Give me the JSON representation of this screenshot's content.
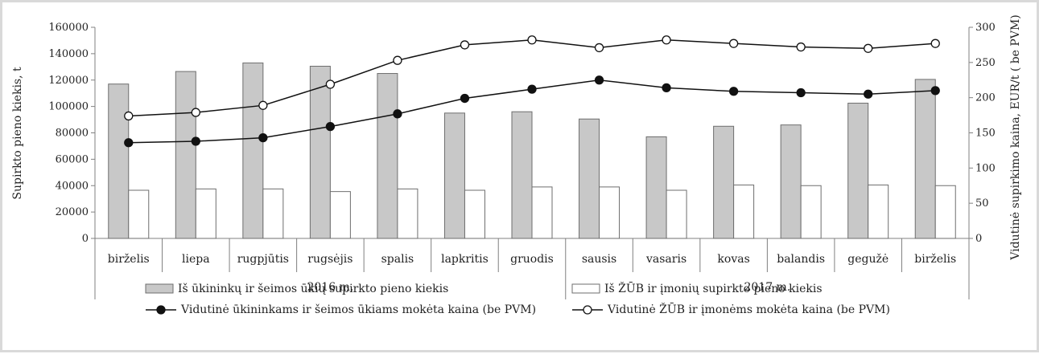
{
  "chart_data": {
    "type": "bar",
    "categories": [
      "birželis",
      "liepa",
      "rugpjūtis",
      "rugsėjis",
      "spalis",
      "lapkritis",
      "gruodis",
      "sausis",
      "vasaris",
      "kovas",
      "balandis",
      "gegužė",
      "birželis"
    ],
    "groups": [
      {
        "label": "2016 m.",
        "start": 0,
        "end": 6
      },
      {
        "label": "2017 m.",
        "start": 7,
        "end": 12
      }
    ],
    "title": "",
    "ylabel": "Supirkto pieno kiekis, t",
    "y2label": "Vidutinė supirkimo kaina, EUR/t ( be PVM)",
    "ylim": [
      0,
      160000
    ],
    "y2lim": [
      0,
      300
    ],
    "yticks": [
      "0",
      "20000",
      "40000",
      "60000",
      "80000",
      "100000",
      "120000",
      "140000",
      "160000"
    ],
    "y2ticks": [
      "0",
      "50",
      "100",
      "150",
      "200",
      "250",
      "300"
    ],
    "grid": false,
    "legend_position": "bottom",
    "series": [
      {
        "name": "Iš ūkininkų ir šeimos ūkių supirkto pieno kiekis",
        "type": "bar",
        "axis": "left",
        "color": "#c8c8c8",
        "values": [
          117000,
          126500,
          133000,
          130500,
          125000,
          95000,
          96000,
          90500,
          77000,
          85000,
          86000,
          102500,
          120500
        ]
      },
      {
        "name": "Iš ŽŪB ir įmonių supirkto pieno kiekis",
        "type": "bar",
        "axis": "left",
        "color": "#ffffff",
        "values": [
          36500,
          37500,
          37500,
          35500,
          37500,
          36500,
          39000,
          39000,
          36500,
          40500,
          40000,
          40500,
          40000
        ]
      },
      {
        "name": "Vidutinė ūkininkams ir šeimos ūkiams mokėta kaina (be PVM)",
        "type": "line",
        "axis": "right",
        "marker": "filled",
        "color": "#111111",
        "values": [
          136,
          138,
          143,
          159,
          177,
          199,
          212,
          225,
          214,
          209,
          207,
          205,
          210
        ]
      },
      {
        "name": "Vidutinė ŽŪB ir įmonėms mokėta kaina (be PVM)",
        "type": "line",
        "axis": "right",
        "marker": "hollow",
        "color": "#111111",
        "values": [
          174,
          179,
          189,
          219,
          253,
          275,
          282,
          271,
          282,
          277,
          272,
          270,
          277
        ]
      }
    ]
  }
}
